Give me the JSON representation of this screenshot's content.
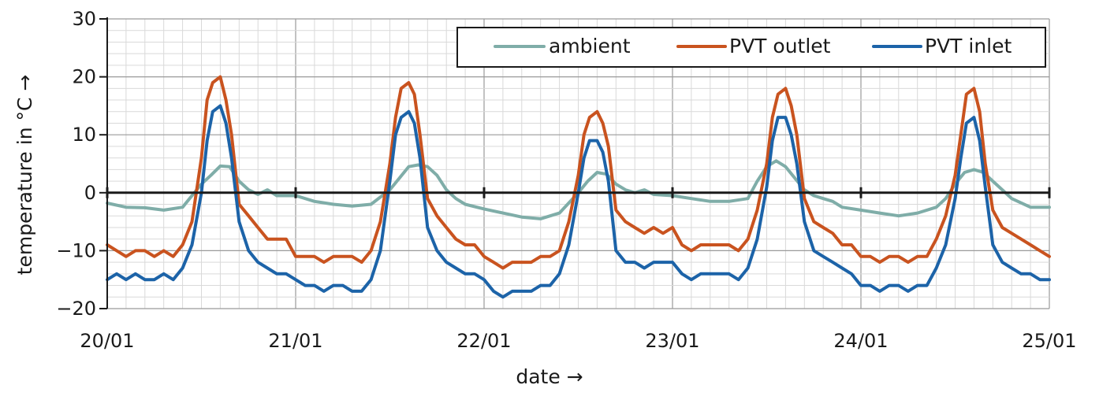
{
  "chart_data": {
    "type": "line",
    "xlabel": "date →",
    "ylabel": "temperature in °C →",
    "x_ticks": [
      "20/01",
      "21/01",
      "22/01",
      "23/01",
      "24/01",
      "25/01"
    ],
    "x_range_days": [
      20,
      25
    ],
    "ylim": [
      -20,
      30
    ],
    "y_ticks": [
      -20,
      -10,
      0,
      10,
      20,
      30
    ],
    "grid": true,
    "legend_position": "top-right",
    "series": [
      {
        "name": "ambient",
        "color": "#7fada8",
        "x": [
          20.0,
          20.1,
          20.2,
          20.3,
          20.4,
          20.45,
          20.5,
          20.55,
          20.6,
          20.65,
          20.7,
          20.75,
          20.8,
          20.85,
          20.9,
          20.95,
          21.0,
          21.1,
          21.2,
          21.3,
          21.4,
          21.5,
          21.55,
          21.6,
          21.65,
          21.7,
          21.75,
          21.8,
          21.85,
          21.9,
          22.0,
          22.1,
          22.2,
          22.3,
          22.4,
          22.5,
          22.55,
          22.6,
          22.65,
          22.7,
          22.75,
          22.8,
          22.85,
          22.9,
          23.0,
          23.1,
          23.2,
          23.3,
          23.4,
          23.45,
          23.5,
          23.55,
          23.6,
          23.65,
          23.7,
          23.75,
          23.8,
          23.85,
          23.9,
          24.0,
          24.1,
          24.2,
          24.3,
          24.4,
          24.45,
          24.5,
          24.55,
          24.6,
          24.65,
          24.7,
          24.75,
          24.8,
          24.9,
          25.0
        ],
        "y": [
          -1.8,
          -2.5,
          -2.6,
          -3.0,
          -2.5,
          -0.5,
          1.5,
          3.0,
          4.6,
          4.5,
          2.0,
          0.5,
          -0.3,
          0.5,
          -0.5,
          -0.5,
          -0.5,
          -1.5,
          -2.0,
          -2.3,
          -2.0,
          0.5,
          2.5,
          4.5,
          4.8,
          4.5,
          3.0,
          0.5,
          -1.0,
          -2.0,
          -2.8,
          -3.5,
          -4.2,
          -4.5,
          -3.5,
          0.0,
          2.0,
          3.5,
          3.2,
          1.5,
          0.5,
          0.0,
          0.5,
          -0.3,
          -0.5,
          -1.0,
          -1.5,
          -1.5,
          -1.0,
          2.0,
          4.5,
          5.5,
          4.5,
          2.5,
          0.5,
          -0.5,
          -1.0,
          -1.5,
          -2.5,
          -3.0,
          -3.5,
          -4.0,
          -3.5,
          -2.5,
          -1.0,
          1.5,
          3.5,
          4.0,
          3.5,
          2.0,
          0.5,
          -1.0,
          -2.5,
          -2.5
        ]
      },
      {
        "name": "PVT outlet",
        "color": "#c9531f",
        "x": [
          20.0,
          20.05,
          20.1,
          20.15,
          20.2,
          20.25,
          20.3,
          20.35,
          20.4,
          20.45,
          20.5,
          20.53,
          20.56,
          20.6,
          20.63,
          20.66,
          20.7,
          20.75,
          20.8,
          20.85,
          20.9,
          20.95,
          21.0,
          21.05,
          21.1,
          21.15,
          21.2,
          21.25,
          21.3,
          21.35,
          21.4,
          21.45,
          21.5,
          21.53,
          21.56,
          21.6,
          21.63,
          21.66,
          21.7,
          21.75,
          21.8,
          21.85,
          21.9,
          21.95,
          22.0,
          22.05,
          22.1,
          22.15,
          22.2,
          22.25,
          22.3,
          22.35,
          22.4,
          22.45,
          22.5,
          22.53,
          22.56,
          22.6,
          22.63,
          22.66,
          22.7,
          22.75,
          22.8,
          22.85,
          22.9,
          22.95,
          23.0,
          23.05,
          23.1,
          23.15,
          23.2,
          23.25,
          23.3,
          23.35,
          23.4,
          23.45,
          23.5,
          23.53,
          23.56,
          23.6,
          23.63,
          23.66,
          23.7,
          23.75,
          23.8,
          23.85,
          23.9,
          23.95,
          24.0,
          24.05,
          24.1,
          24.15,
          24.2,
          24.25,
          24.3,
          24.35,
          24.4,
          24.45,
          24.5,
          24.53,
          24.56,
          24.6,
          24.63,
          24.66,
          24.7,
          24.75,
          24.8,
          24.85,
          24.9,
          24.95,
          25.0
        ],
        "y": [
          -9,
          -10,
          -11,
          -10,
          -10,
          -11,
          -10,
          -11,
          -9,
          -5,
          6,
          16,
          19,
          20,
          16,
          10,
          -2,
          -4,
          -6,
          -8,
          -8,
          -8,
          -11,
          -11,
          -11,
          -12,
          -11,
          -11,
          -11,
          -12,
          -10,
          -5,
          5,
          13,
          18,
          19,
          17,
          10,
          -1,
          -4,
          -6,
          -8,
          -9,
          -9,
          -11,
          -12,
          -13,
          -12,
          -12,
          -12,
          -11,
          -11,
          -10,
          -5,
          3,
          10,
          13,
          14,
          12,
          8,
          -3,
          -5,
          -6,
          -7,
          -6,
          -7,
          -6,
          -9,
          -10,
          -9,
          -9,
          -9,
          -9,
          -10,
          -8,
          -3,
          5,
          13,
          17,
          18,
          15,
          10,
          -1,
          -5,
          -6,
          -7,
          -9,
          -9,
          -11,
          -11,
          -12,
          -11,
          -11,
          -12,
          -11,
          -11,
          -8,
          -4,
          3,
          10,
          17,
          18,
          14,
          5,
          -3,
          -6,
          -7,
          -8,
          -9,
          -10,
          -11
        ]
      },
      {
        "name": "PVT inlet",
        "color": "#1c63a8",
        "x": [
          20.0,
          20.05,
          20.1,
          20.15,
          20.2,
          20.25,
          20.3,
          20.35,
          20.4,
          20.45,
          20.5,
          20.53,
          20.56,
          20.6,
          20.63,
          20.66,
          20.7,
          20.75,
          20.8,
          20.85,
          20.9,
          20.95,
          21.0,
          21.05,
          21.1,
          21.15,
          21.2,
          21.25,
          21.3,
          21.35,
          21.4,
          21.45,
          21.5,
          21.53,
          21.56,
          21.6,
          21.63,
          21.66,
          21.7,
          21.75,
          21.8,
          21.85,
          21.9,
          21.95,
          22.0,
          22.05,
          22.1,
          22.15,
          22.2,
          22.25,
          22.3,
          22.35,
          22.4,
          22.45,
          22.5,
          22.53,
          22.56,
          22.6,
          22.63,
          22.66,
          22.7,
          22.75,
          22.8,
          22.85,
          22.9,
          22.95,
          23.0,
          23.05,
          23.1,
          23.15,
          23.2,
          23.25,
          23.3,
          23.35,
          23.4,
          23.45,
          23.5,
          23.53,
          23.56,
          23.6,
          23.63,
          23.66,
          23.7,
          23.75,
          23.8,
          23.85,
          23.9,
          23.95,
          24.0,
          24.05,
          24.1,
          24.15,
          24.2,
          24.25,
          24.3,
          24.35,
          24.4,
          24.45,
          24.5,
          24.53,
          24.56,
          24.6,
          24.63,
          24.66,
          24.7,
          24.75,
          24.8,
          24.85,
          24.9,
          24.95,
          25.0
        ],
        "y": [
          -15,
          -14,
          -15,
          -14,
          -15,
          -15,
          -14,
          -15,
          -13,
          -9,
          0,
          9,
          14,
          15,
          12,
          6,
          -5,
          -10,
          -12,
          -13,
          -14,
          -14,
          -15,
          -16,
          -16,
          -17,
          -16,
          -16,
          -17,
          -17,
          -15,
          -10,
          2,
          10,
          13,
          14,
          12,
          6,
          -6,
          -10,
          -12,
          -13,
          -14,
          -14,
          -15,
          -17,
          -18,
          -17,
          -17,
          -17,
          -16,
          -16,
          -14,
          -9,
          0,
          6,
          9,
          9,
          7,
          2,
          -10,
          -12,
          -12,
          -13,
          -12,
          -12,
          -12,
          -14,
          -15,
          -14,
          -14,
          -14,
          -14,
          -15,
          -13,
          -8,
          1,
          9,
          13,
          13,
          10,
          5,
          -5,
          -10,
          -11,
          -12,
          -13,
          -14,
          -16,
          -16,
          -17,
          -16,
          -16,
          -17,
          -16,
          -16,
          -13,
          -9,
          -1,
          6,
          12,
          13,
          9,
          1,
          -9,
          -12,
          -13,
          -14,
          -14,
          -15,
          -15
        ]
      }
    ]
  }
}
